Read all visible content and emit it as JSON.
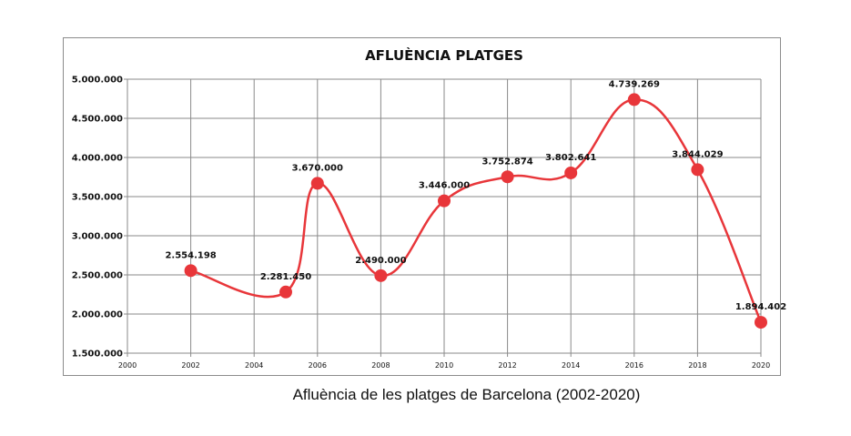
{
  "chart_data": {
    "type": "line",
    "title": "AFLUÈNCIA PLATGES",
    "x": [
      2002,
      2005,
      2006,
      2008,
      2010,
      2012,
      2014,
      2016,
      2018,
      2020
    ],
    "series": [
      {
        "values": [
          2554198,
          2281450,
          3670000,
          2490000,
          3446000,
          3752874,
          3802641,
          4739269,
          3844029,
          1894402
        ]
      }
    ],
    "data_labels": [
      "2.554.198",
      "2.281.450",
      "3.670.000",
      "2.490.000",
      "3.446.000",
      "3.752.874",
      "3.802.641",
      "4.739.269",
      "3.844.029",
      "1.894.402"
    ],
    "xlim": [
      2000,
      2020
    ],
    "ylim": [
      1500000,
      5000000
    ],
    "xticks": [
      "2000",
      "2002",
      "2004",
      "2006",
      "2008",
      "2010",
      "2012",
      "2014",
      "2016",
      "2018",
      "2020"
    ],
    "yticks": [
      "1.500.000",
      "2.000.000",
      "2.500.000",
      "3.000.000",
      "3.500.000",
      "4.000.000",
      "4.500.000",
      "5.000.000"
    ],
    "grid": true,
    "line_style": "smoothed",
    "marker": "circle",
    "color": "#e8363a"
  },
  "caption": "Afluència de les platges de Barcelona (2002-2020)"
}
